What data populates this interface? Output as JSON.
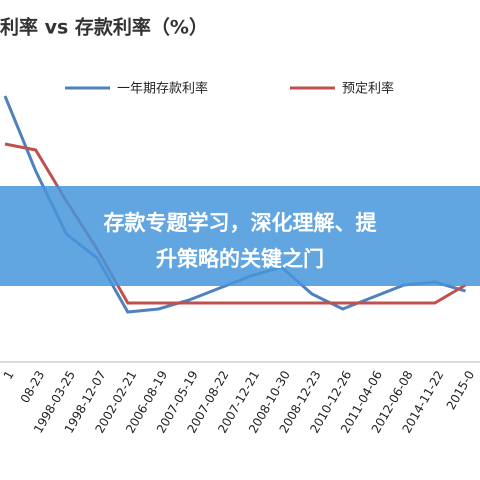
{
  "chart_data": {
    "type": "line",
    "title": "利率 vs 存款利率（%）",
    "categories": [
      "1",
      "08-23",
      "1998-03-25",
      "1998-12-07",
      "2002-02-21",
      "2006-08-19",
      "2007-05-19",
      "2007-08-22",
      "2007-12-21",
      "2008-10-30",
      "2008-12-23",
      "2010-12-26",
      "2011-04-06",
      "2012-06-08",
      "2014-11-22",
      "2015-0"
    ],
    "series": [
      {
        "name": "一年期存款利率",
        "color": "#4f81bd",
        "values": [
          8.8,
          6.3,
          4.2,
          3.4,
          1.6,
          1.7,
          2.0,
          2.4,
          2.8,
          3.1,
          2.2,
          1.7,
          2.1,
          2.5,
          2.6,
          2.3
        ]
      },
      {
        "name": "预定利率",
        "color": "#c0504d",
        "values": [
          7.2,
          7.0,
          5.3,
          3.7,
          1.9,
          1.9,
          1.9,
          1.9,
          1.9,
          1.9,
          1.9,
          1.9,
          1.9,
          1.9,
          1.9,
          2.5
        ]
      }
    ],
    "ylim": [
      0,
      10
    ],
    "annotations": [
      "存款专题学习，深化理解、提",
      "升策略的关键之门"
    ]
  }
}
